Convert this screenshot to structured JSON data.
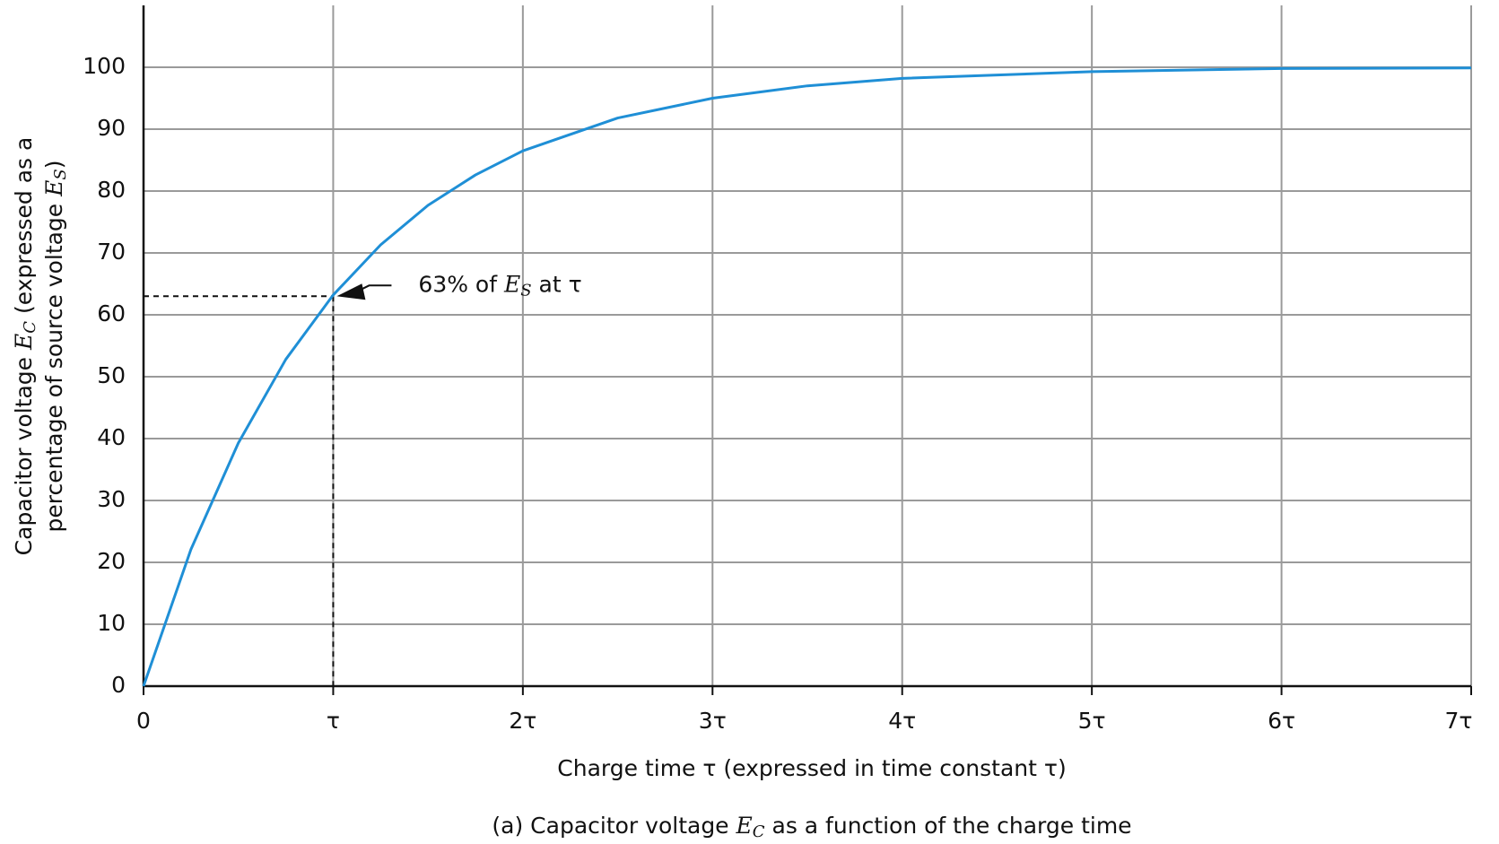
{
  "chart_data": {
    "type": "line",
    "x_label": "Charge time τ (expressed in time constant τ)",
    "y_label": [
      [
        "Capacitor voltage ",
        "E",
        "C",
        " (expressed as a"
      ],
      [
        "percentage of source voltage ",
        "E",
        "S",
        ")"
      ]
    ],
    "caption": [
      "(a) Capacitor voltage ",
      "E",
      "C",
      " as a function of the charge time"
    ],
    "annotation": {
      "x": 1,
      "y": 63,
      "text": [
        "63% of ",
        "E",
        "S",
        " at τ"
      ]
    },
    "x": [
      0,
      0.25,
      0.5,
      0.75,
      1,
      1.25,
      1.5,
      1.75,
      2,
      2.5,
      3,
      3.5,
      4,
      5,
      6,
      7
    ],
    "series": [
      {
        "color": "#1f8fd6",
        "values": [
          0,
          22.1,
          39.3,
          52.8,
          63.2,
          71.3,
          77.7,
          82.6,
          86.5,
          91.8,
          95.0,
          97.0,
          98.2,
          99.3,
          99.8,
          99.9
        ]
      }
    ],
    "xlim": [
      0,
      7
    ],
    "xticks": [
      0,
      {
        "value": 1,
        "label": "τ"
      },
      {
        "value": 2,
        "label": "2τ"
      },
      {
        "value": 3,
        "label": "3τ"
      },
      {
        "value": 4,
        "label": "4τ"
      },
      {
        "value": 5,
        "label": "5τ"
      },
      {
        "value": 6,
        "label": "6τ"
      },
      {
        "value": 7,
        "label": "7τ"
      }
    ],
    "ylim": [
      0,
      110
    ],
    "yticks": [
      0,
      10,
      20,
      30,
      40,
      50,
      60,
      70,
      80,
      90,
      100
    ],
    "grid": true
  }
}
